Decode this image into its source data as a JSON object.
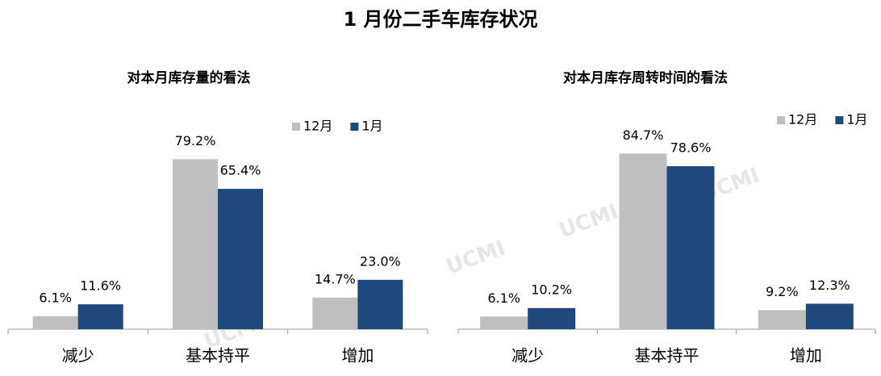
{
  "title": "1 月份二手车库存状况",
  "watermark": "UCMI",
  "chart_data": [
    {
      "type": "bar",
      "title": "对本月库存量的看法",
      "categories": [
        "减少",
        "基本持平",
        "增加"
      ],
      "series": [
        {
          "name": "12月",
          "color": "#bfbfbf",
          "values": [
            6.1,
            79.2,
            14.7
          ],
          "value_labels": [
            "6.1%",
            "79.2%",
            "14.7%"
          ]
        },
        {
          "name": "1月",
          "color": "#1f497d",
          "values": [
            11.6,
            65.4,
            23.0
          ],
          "value_labels": [
            "11.6%",
            "65.4%",
            "23.0%"
          ]
        }
      ]
    },
    {
      "type": "bar",
      "title": "对本月库存周转时间的看法",
      "categories": [
        "减少",
        "基本持平",
        "增加"
      ],
      "series": [
        {
          "name": "12月",
          "color": "#bfbfbf",
          "values": [
            6.1,
            84.7,
            9.2
          ],
          "value_labels": [
            "6.1%",
            "84.7%",
            "9.2%"
          ]
        },
        {
          "name": "1月",
          "color": "#1f497d",
          "values": [
            10.2,
            78.6,
            12.3
          ],
          "value_labels": [
            "10.2%",
            "78.6%",
            "12.3%"
          ]
        }
      ]
    }
  ]
}
